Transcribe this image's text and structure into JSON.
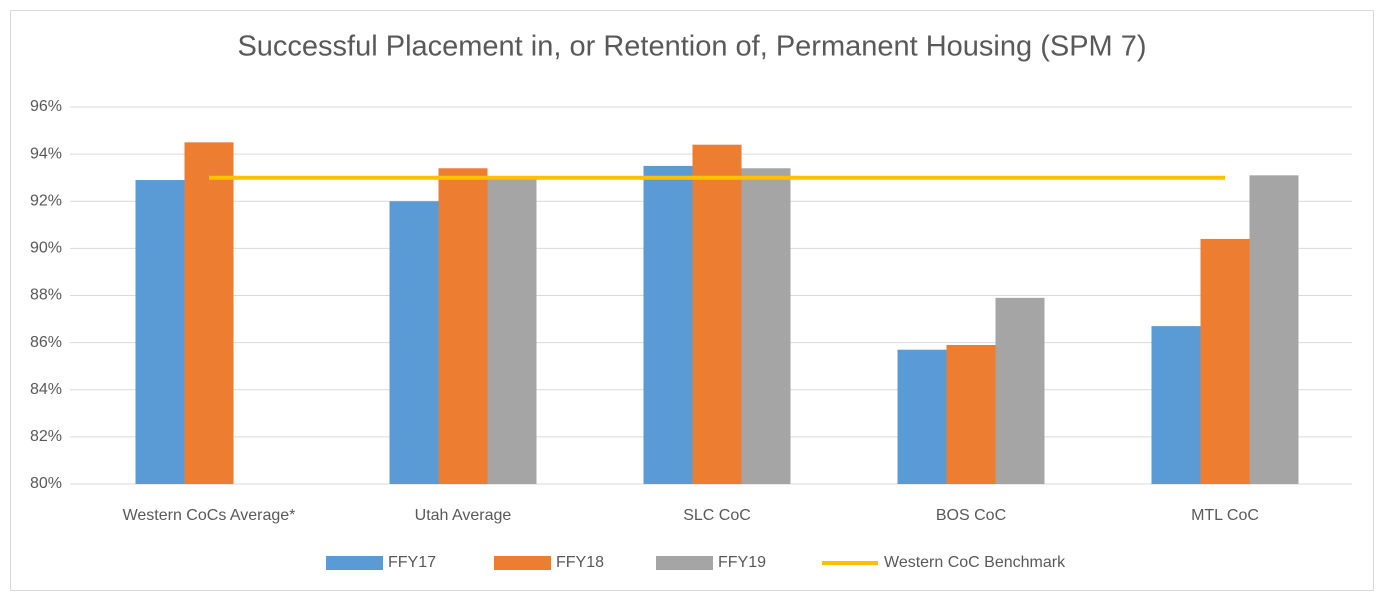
{
  "chart_data": {
    "type": "bar",
    "title": "Successful Placement in, or Retention of, Permanent Housing (SPM 7)",
    "categories": [
      "Western CoCs Average*",
      "Utah Average",
      "SLC CoC",
      "BOS CoC",
      "MTL CoC"
    ],
    "series": [
      {
        "name": "FFY17",
        "color": "#5b9bd5",
        "values": [
          92.9,
          92.0,
          93.5,
          85.7,
          86.7
        ]
      },
      {
        "name": "FFY18",
        "color": "#ed7d31",
        "values": [
          94.5,
          93.4,
          94.4,
          85.9,
          90.4
        ]
      },
      {
        "name": "FFY19",
        "color": "#a5a5a5",
        "values": [
          null,
          93.0,
          93.4,
          87.9,
          93.1
        ]
      },
      {
        "name": "Western CoC Benchmark",
        "color": "#ffc000",
        "type": "line",
        "values": [
          93.0,
          93.0,
          93.0,
          93.0,
          93.0
        ]
      }
    ],
    "ylim": [
      80,
      96
    ],
    "yticks": [
      {
        "value": 80,
        "label": "80%"
      },
      {
        "value": 82,
        "label": "82%"
      },
      {
        "value": 84,
        "label": "84%"
      },
      {
        "value": 86,
        "label": "86%"
      },
      {
        "value": 88,
        "label": "88%"
      },
      {
        "value": 90,
        "label": "90%"
      },
      {
        "value": 92,
        "label": "92%"
      },
      {
        "value": 94,
        "label": "94%"
      },
      {
        "value": 96,
        "label": "96%"
      }
    ],
    "grid": true,
    "legend": "bottom"
  }
}
